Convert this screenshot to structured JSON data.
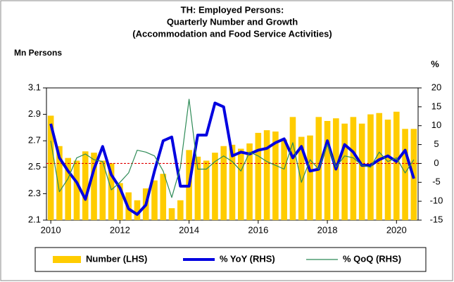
{
  "chart_data": {
    "type": "bar_line",
    "title": [
      "TH: Employed Persons:",
      "Quarterly Number and Growth",
      "(Accommodation and Food Service Activities)"
    ],
    "y_label": "Mn Persons",
    "y2_label": "%",
    "categories": [
      "2010",
      null,
      null,
      null,
      null,
      null,
      null,
      null,
      "2012",
      null,
      null,
      null,
      null,
      null,
      null,
      null,
      "2014",
      null,
      null,
      null,
      null,
      null,
      null,
      null,
      "2016",
      null,
      null,
      null,
      null,
      null,
      null,
      null,
      "2018",
      null,
      null,
      null,
      null,
      null,
      null,
      null,
      "2020",
      null,
      null
    ],
    "series": [
      {
        "name": "Number (LHS)",
        "type": "bar",
        "color": "#ffcc00",
        "values": [
          2.89,
          2.66,
          2.57,
          2.55,
          2.62,
          2.61,
          2.55,
          2.53,
          2.38,
          2.31,
          2.25,
          2.34,
          2.4,
          2.45,
          2.19,
          2.25,
          2.63,
          2.58,
          2.55,
          2.61,
          2.66,
          2.67,
          2.64,
          2.68,
          2.76,
          2.78,
          2.77,
          2.71,
          2.88,
          2.73,
          2.74,
          2.88,
          2.85,
          2.87,
          2.83,
          2.88,
          2.83,
          2.9,
          2.91,
          2.86,
          2.92,
          2.79,
          2.79
        ]
      },
      {
        "name": "% YoY (RHS)",
        "type": "line",
        "axis": "y2",
        "color": "#0000e0",
        "width": 4,
        "values": [
          10.5,
          1.5,
          -2,
          -5,
          -9.5,
          -1.5,
          4.5,
          -3,
          -6.5,
          -12,
          -13.5,
          -11,
          -2,
          6,
          7,
          -6,
          -6,
          7.5,
          7.5,
          16,
          15,
          2,
          3,
          2.5,
          3.5,
          4,
          5.5,
          6.5,
          1.5,
          4.5,
          -2,
          -1.5,
          6,
          -1.5,
          5,
          3,
          -0.5,
          -0.5,
          1,
          2,
          0.5,
          3.5,
          -4
        ]
      },
      {
        "name": "% QoQ (RHS)",
        "type": "line",
        "axis": "y2",
        "color": "#2e8b57",
        "width": 1.2,
        "values": [
          6,
          -7.5,
          -4,
          1.5,
          2.5,
          1,
          0.5,
          -7,
          -5,
          -2.5,
          3.5,
          3,
          2,
          -2,
          -9,
          -1,
          17,
          -1.5,
          -1.5,
          0.5,
          2,
          0.5,
          -2,
          3,
          2,
          0.5,
          -0.5,
          -1.5,
          5.5,
          -5,
          1,
          -1.5,
          5,
          -1,
          2,
          1.5,
          -0.5,
          -1,
          3,
          0.5,
          1.5,
          -2.5,
          1
        ]
      }
    ],
    "ylim": [
      2.1,
      3.1
    ],
    "yticks": [
      2.1,
      2.3,
      2.5,
      2.7,
      2.9,
      3.1
    ],
    "y2lim": [
      -15,
      20
    ],
    "y2ticks": [
      -15,
      -10,
      -5,
      0,
      5,
      10,
      15,
      20
    ],
    "reference_line": {
      "axis": "y2",
      "value": 0,
      "color": "#e00000"
    }
  }
}
